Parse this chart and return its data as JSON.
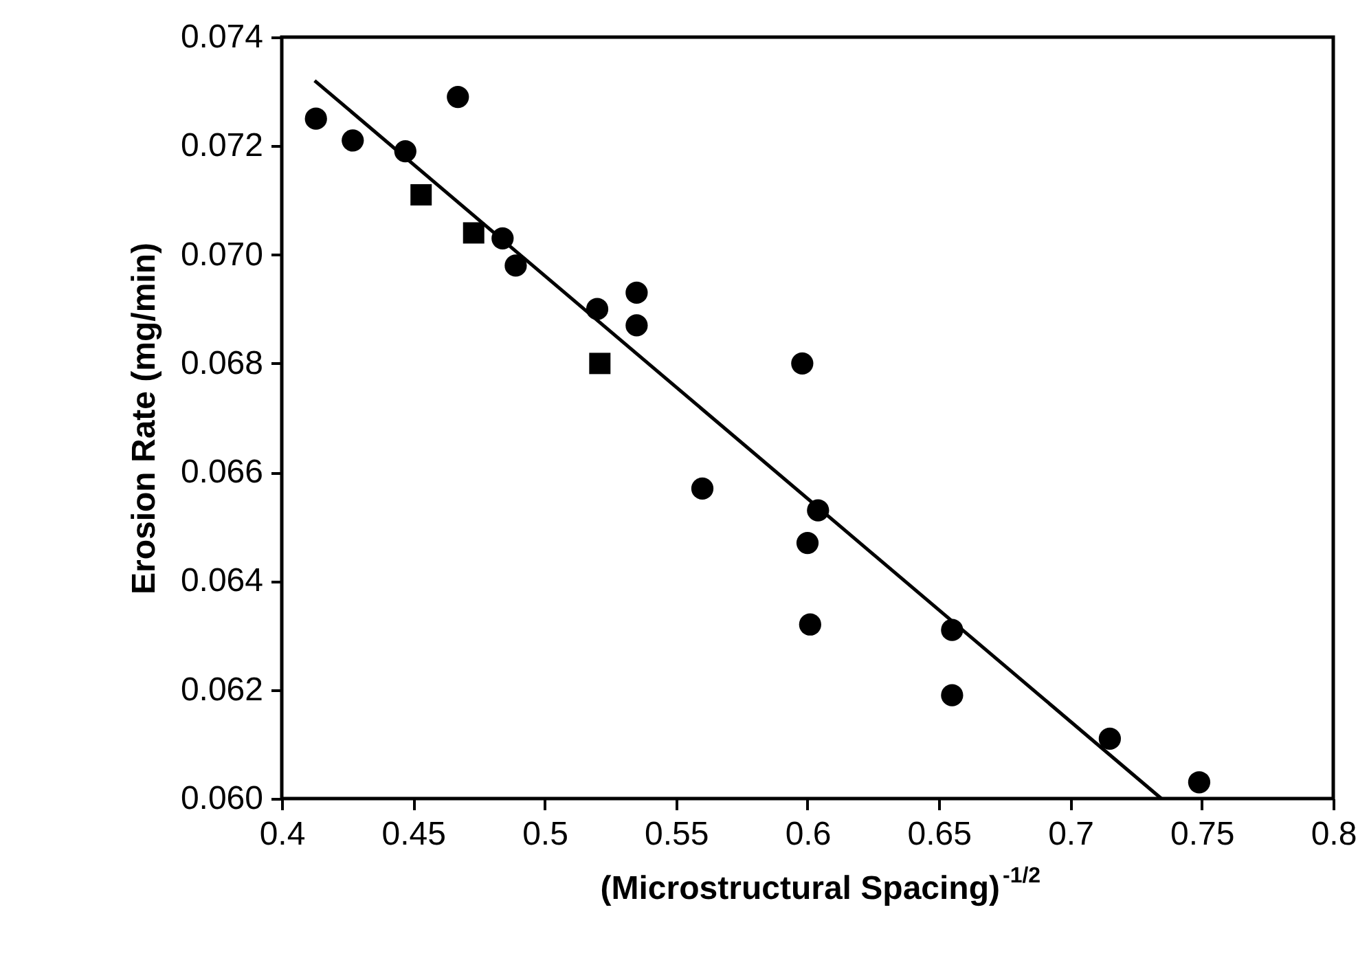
{
  "chart_data": {
    "type": "scatter",
    "xlabel": "(Microstructural Spacing)$^{-1/2}$",
    "ylabel": "Erosion Rate (mg/min)",
    "xlim": [
      0.4,
      0.8
    ],
    "ylim": [
      0.06,
      0.074
    ],
    "xticks": [
      0.4,
      0.45,
      0.5,
      0.55,
      0.6,
      0.65,
      0.7,
      0.75,
      0.8
    ],
    "yticks": [
      {
        "value": 0.06,
        "label": "0.060"
      },
      {
        "value": 0.062,
        "label": "0.062"
      },
      {
        "value": 0.064,
        "label": "0.064"
      },
      {
        "value": 0.066,
        "label": "0.066"
      },
      {
        "value": 0.068,
        "label": "0.068"
      },
      {
        "value": 0.07,
        "label": "0.070"
      },
      {
        "value": 0.072,
        "label": "0.072"
      },
      {
        "value": 0.074,
        "label": "0.074"
      }
    ],
    "grid": false,
    "series": [
      {
        "type": "scatter",
        "marker": "circle",
        "color": "#000000",
        "x": [
          0.413,
          0.427,
          0.447,
          0.467,
          0.484,
          0.489,
          0.52,
          0.535,
          0.535,
          0.56,
          0.598,
          0.604,
          0.6,
          0.601,
          0.655,
          0.655,
          0.715,
          0.749
        ],
        "values": [
          0.0725,
          0.0721,
          0.0719,
          0.0729,
          0.0703,
          0.0698,
          0.069,
          0.0693,
          0.0687,
          0.0657,
          0.068,
          0.0653,
          0.0647,
          0.0632,
          0.0631,
          0.0619,
          0.0611,
          0.0603
        ]
      },
      {
        "type": "scatter",
        "marker": "square",
        "color": "#000000",
        "x": [
          0.453,
          0.473,
          0.521
        ],
        "values": [
          0.0711,
          0.0704,
          0.068
        ]
      },
      {
        "type": "line",
        "marker": "none",
        "line_style": "solid",
        "color": "#000000",
        "x": [
          0.4125,
          0.7346
        ],
        "values": [
          0.0732,
          0.06
        ]
      }
    ]
  }
}
